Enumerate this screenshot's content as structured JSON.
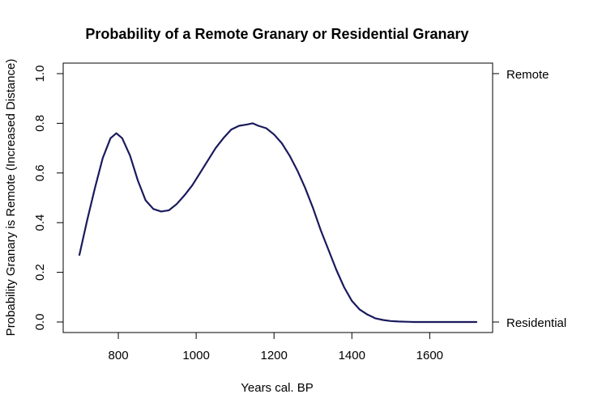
{
  "chart_data": {
    "type": "line",
    "title": "Probability of a Remote Granary or Residential Granary",
    "xlabel": "Years cal. BP",
    "ylabel": "Probability Granary is Remote (Increased Distance)",
    "xlim": [
      700,
      1720
    ],
    "ylim": [
      0,
      1
    ],
    "x_ticks": [
      800,
      1000,
      1200,
      1400,
      1600
    ],
    "y_ticks": [
      0.0,
      0.2,
      0.4,
      0.6,
      0.8,
      1.0
    ],
    "y_tick_labels": [
      "0.0",
      "0.2",
      "0.4",
      "0.6",
      "0.8",
      "1.0"
    ],
    "right_axis_labels": [
      {
        "value": 1.0,
        "label": "Remote"
      },
      {
        "value": 0.0,
        "label": "Residential"
      }
    ],
    "grid": false,
    "line_color": "#1a1a5e",
    "series": [
      {
        "x": [
          700,
          720,
          740,
          760,
          780,
          795,
          810,
          830,
          850,
          870,
          890,
          910,
          930,
          950,
          970,
          990,
          1010,
          1030,
          1050,
          1070,
          1090,
          1110,
          1130,
          1145,
          1160,
          1180,
          1200,
          1220,
          1240,
          1260,
          1280,
          1300,
          1320,
          1340,
          1360,
          1380,
          1400,
          1420,
          1440,
          1460,
          1480,
          1500,
          1520,
          1540,
          1560,
          1600,
          1650,
          1720
        ],
        "y": [
          0.27,
          0.41,
          0.54,
          0.66,
          0.74,
          0.76,
          0.74,
          0.67,
          0.57,
          0.49,
          0.455,
          0.445,
          0.45,
          0.475,
          0.51,
          0.55,
          0.6,
          0.65,
          0.7,
          0.74,
          0.775,
          0.79,
          0.795,
          0.8,
          0.79,
          0.78,
          0.755,
          0.72,
          0.67,
          0.61,
          0.54,
          0.46,
          0.37,
          0.29,
          0.21,
          0.14,
          0.085,
          0.05,
          0.03,
          0.015,
          0.008,
          0.004,
          0.002,
          0.001,
          0.0,
          0.0,
          0.0,
          0.0
        ]
      }
    ]
  }
}
